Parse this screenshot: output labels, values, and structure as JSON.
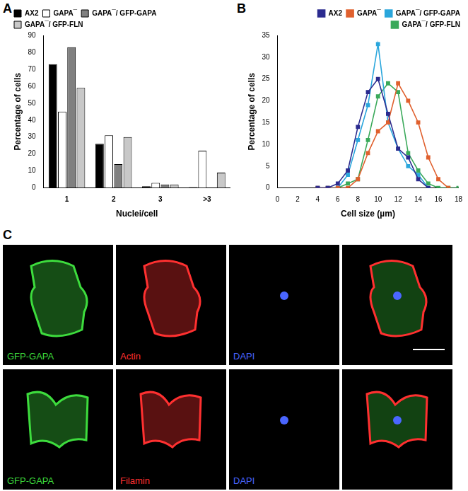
{
  "chart_data": [
    {
      "panel": "A",
      "type": "bar",
      "categories": [
        "1",
        "2",
        "3",
        ">3"
      ],
      "series": [
        {
          "name": "AX2",
          "color": "#000000",
          "values": [
            73,
            26,
            1,
            0.5
          ]
        },
        {
          "name": "GAPA¯",
          "color": "#ffffff",
          "values": [
            45,
            31,
            3,
            22
          ]
        },
        {
          "name": "GAPA¯/ GFP-GAPA",
          "color": "#808080",
          "values": [
            83,
            14,
            2,
            0
          ]
        },
        {
          "name": "GAPA¯/ GFP-FLN",
          "color": "#c8c8c8",
          "values": [
            59,
            30,
            2,
            9
          ]
        }
      ],
      "x_label": "Nuclei/cell",
      "y_label": "Percentage of cells",
      "ylim": [
        0,
        90
      ],
      "yticks": [
        0,
        10,
        20,
        30,
        40,
        50,
        60,
        70,
        80,
        90
      ],
      "grid": false,
      "legend": "top-left"
    },
    {
      "panel": "B",
      "type": "line",
      "x": [
        4,
        5,
        6,
        7,
        8,
        9,
        10,
        11,
        12,
        13,
        14,
        15,
        16,
        17,
        18
      ],
      "series": [
        {
          "name": "AX2",
          "color": "#2b2b8f",
          "marker": "square",
          "values": [
            0,
            0,
            1,
            4,
            14,
            22,
            25,
            17,
            9,
            7,
            2,
            0,
            null,
            null,
            null
          ]
        },
        {
          "name": "GAPA¯",
          "color": "#e0602e",
          "marker": "square",
          "values": [
            0,
            0,
            0,
            0,
            2,
            8,
            13,
            15,
            24,
            20,
            15,
            7,
            2,
            0,
            null
          ]
        },
        {
          "name": "GAPA¯/ GFP-GAPA",
          "color": "#2aa6dc",
          "marker": "square",
          "values": [
            0,
            0,
            0,
            3,
            11,
            19,
            33,
            15,
            9,
            5,
            3,
            0,
            null,
            null,
            null
          ]
        },
        {
          "name": "GAPA¯/ GFP-FLN",
          "color": "#3aa95a",
          "marker": "square",
          "values": [
            null,
            null,
            0,
            1,
            2,
            11,
            21,
            24,
            22,
            8,
            4,
            1,
            0,
            0,
            0
          ]
        }
      ],
      "x_label": "Cell size (µm)",
      "y_label": "Percentage of cells",
      "xlim": [
        0,
        18
      ],
      "xticks": [
        0,
        2,
        4,
        6,
        8,
        10,
        12,
        14,
        16,
        18
      ],
      "ylim": [
        0,
        35
      ],
      "yticks": [
        0,
        5,
        10,
        15,
        20,
        25,
        30,
        35
      ],
      "grid": false,
      "legend": "top-right"
    }
  ],
  "images": {
    "panel": "C",
    "rows": [
      [
        {
          "label": "GFP-GAPA",
          "color": "#3ddc3d"
        },
        {
          "label": "Actin",
          "color": "#ff3030"
        },
        {
          "label": "DAPI",
          "color": "#4a66ff"
        }
      ],
      [
        {
          "label": "GFP-GAPA",
          "color": "#3ddc3d"
        },
        {
          "label": "Filamin",
          "color": "#ff3030"
        },
        {
          "label": "DAPI",
          "color": "#4a66ff"
        }
      ]
    ]
  }
}
